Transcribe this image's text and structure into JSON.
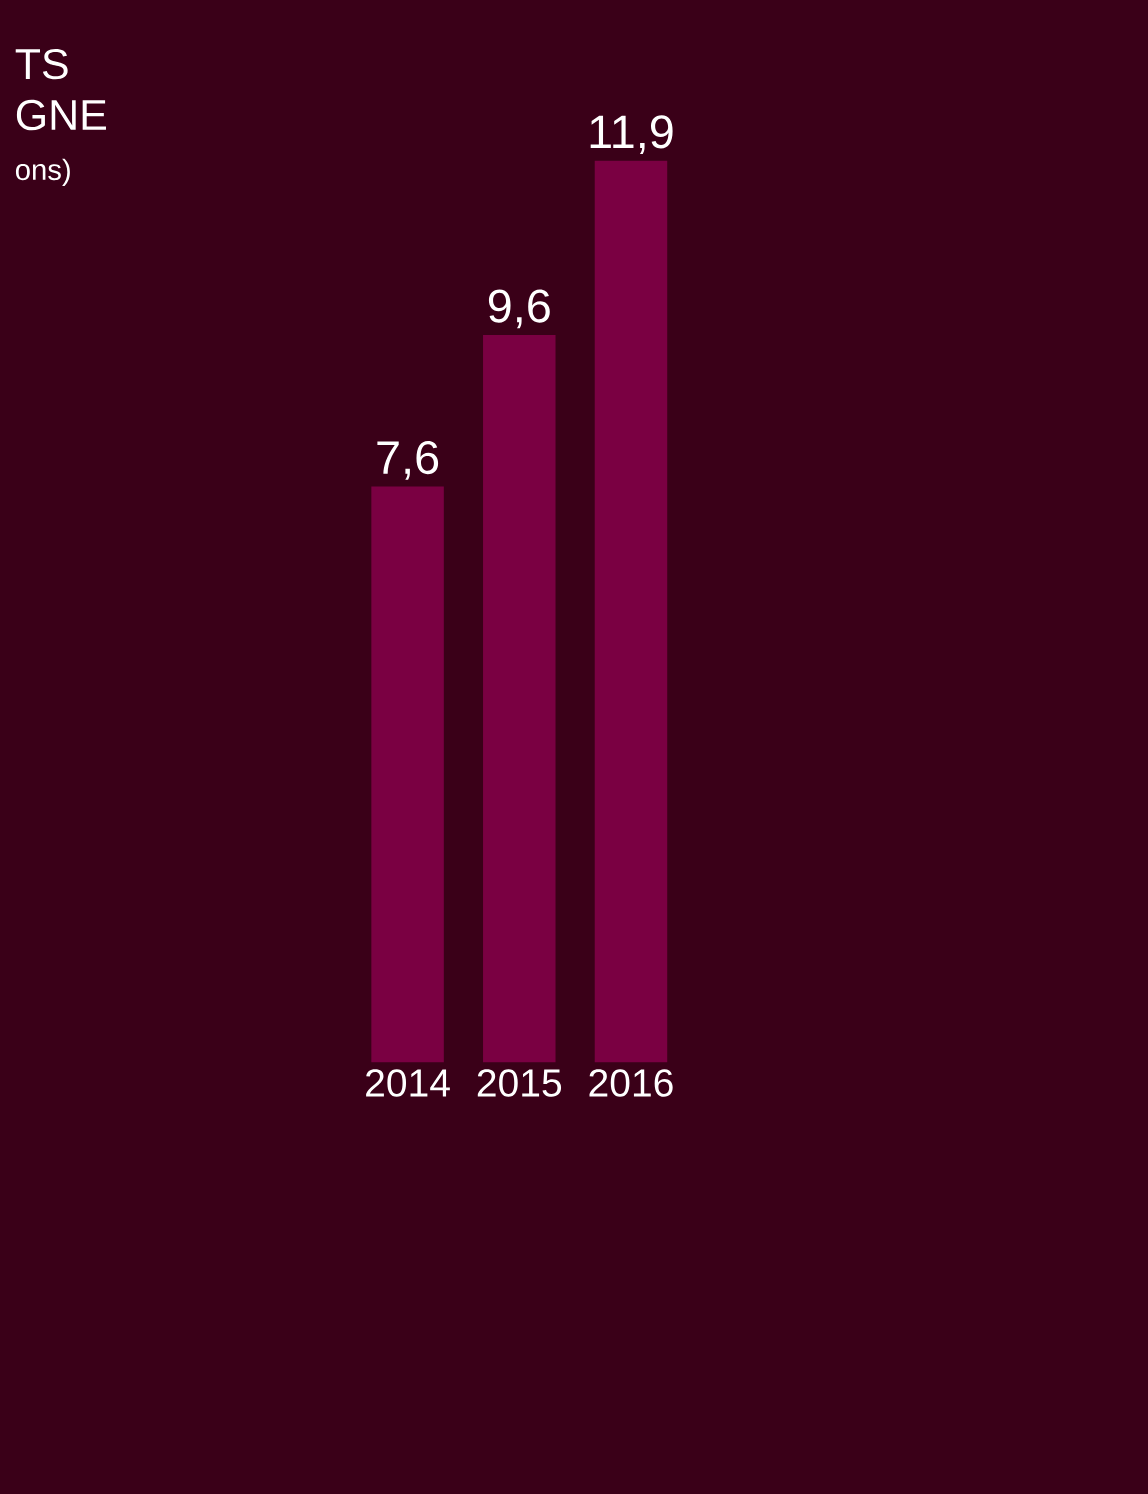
{
  "chart_data": {
    "type": "bar",
    "title": "TS",
    "subtitle": "GNE",
    "annotations": [
      "ons)"
    ],
    "categories": [
      "2014",
      "2015",
      "2016"
    ],
    "values": [
      7.6,
      9.6,
      11.9
    ],
    "value_labels": [
      "7,6",
      "9,6",
      "11,9"
    ],
    "color": "#7a0042"
  }
}
